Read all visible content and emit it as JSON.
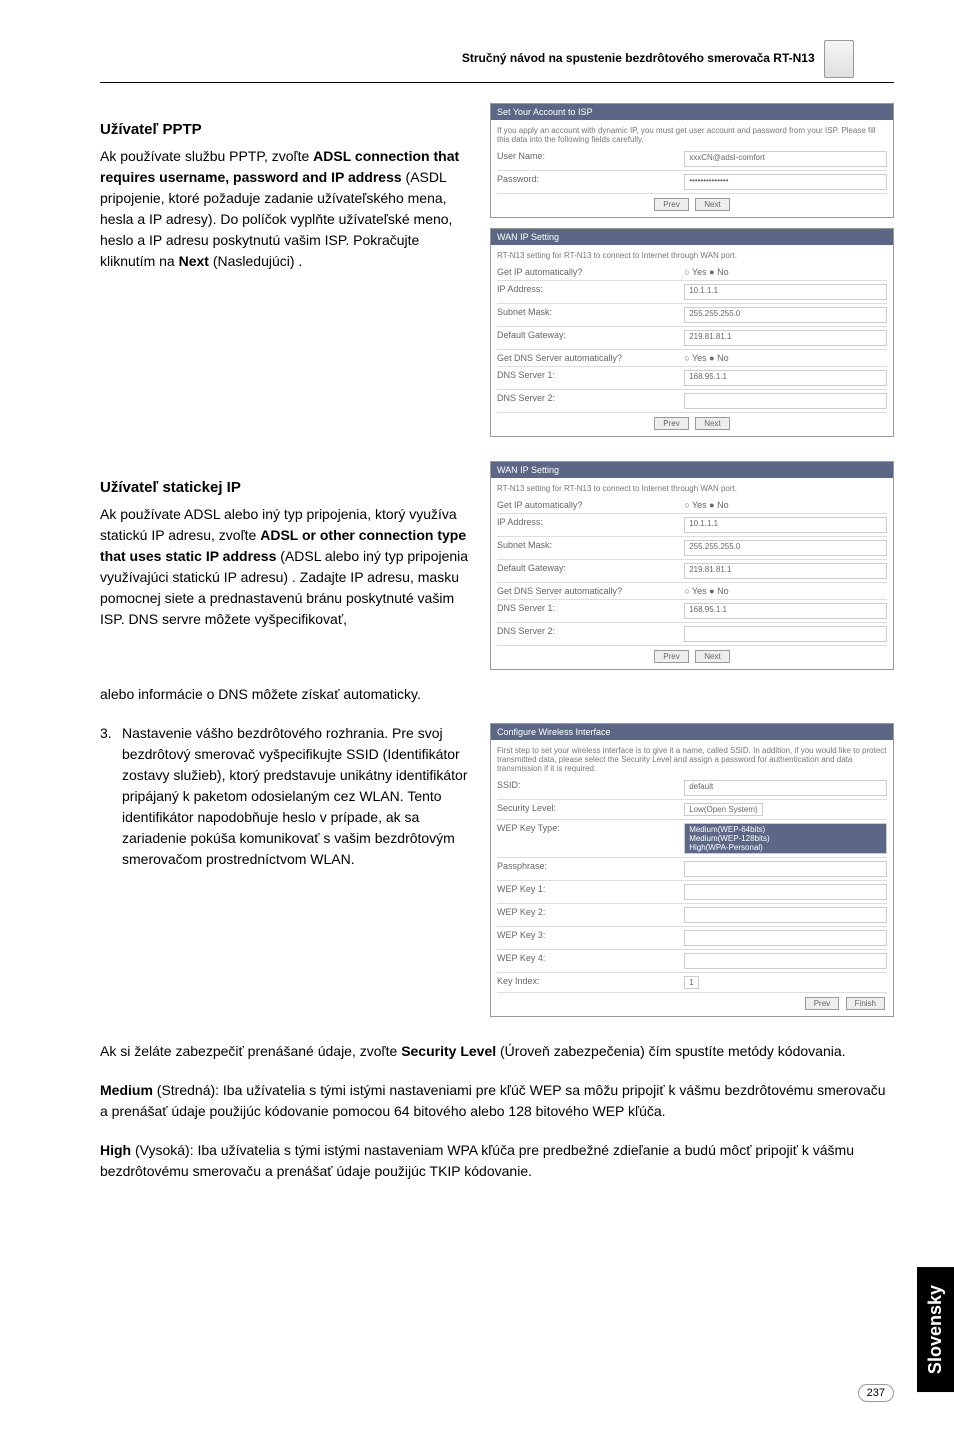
{
  "header": {
    "title": "Stručný návod na spustenie bezdrôtového smerovača RT-N13"
  },
  "pptp": {
    "title": "Užívateľ PPTP",
    "body": "Ak používate službu PPTP, zvoľte ADSL connection that requires username, password and IP address (ASDL pripojenie, ktoré požaduje zadanie užívateľského mena, hesla a IP adresy). Do políčok vyplňte užívateľské meno, heslo a IP adresu poskytnutú vašim ISP. Pokračujte kliknutím na Next (Nasledujúci) ."
  },
  "shot_account": {
    "header": "Set Your Account to ISP",
    "desc": "If you apply an account with dynamic IP, you must get user account and password from your ISP. Please fill this data into the following fields carefully.",
    "rows": [
      {
        "label": "User Name:",
        "value": "xxxCN@adsl-comfort"
      },
      {
        "label": "Password:",
        "value": "••••••••••••••"
      }
    ],
    "btn_prev": "Prev",
    "btn_next": "Next"
  },
  "shot_wanip1": {
    "header": "WAN IP Setting",
    "desc": "RT-N13 setting for RT-N13 to connect to Internet through WAN port.",
    "rows": [
      {
        "label": "Get IP automatically?",
        "value": "○ Yes ● No"
      },
      {
        "label": "IP Address:",
        "value": "10.1.1.1"
      },
      {
        "label": "Subnet Mask:",
        "value": "255.255.255.0"
      },
      {
        "label": "Default Gateway:",
        "value": "219.81.81.1"
      },
      {
        "label": "Get DNS Server automatically?",
        "value": "○ Yes ● No"
      },
      {
        "label": "DNS Server 1:",
        "value": "168.95.1.1"
      },
      {
        "label": "DNS Server 2:",
        "value": ""
      }
    ],
    "btn_prev": "Prev",
    "btn_next": "Next"
  },
  "staticip": {
    "title": "Užívateľ statickej IP",
    "body": "Ak používate ADSL alebo iný typ pripojenia, ktorý využíva statickú IP adresu, zvoľte ADSL or other connection type that uses static IP address (ADSL alebo iný typ pripojenia využívajúci statickú IP adresu) . Zadajte IP adresu, masku pomocnej siete a prednastavenú bránu poskytnuté vašim ISP. DNS servre môžete vyšpecifikovať, alebo informácie o DNS môžete získať automaticky."
  },
  "shot_wanip2": {
    "header": "WAN IP Setting",
    "desc": "RT-N13 setting for RT-N13 to connect to Internet through WAN port.",
    "rows": [
      {
        "label": "Get IP automatically?",
        "value": "○ Yes ● No"
      },
      {
        "label": "IP Address:",
        "value": "10.1.1.1"
      },
      {
        "label": "Subnet Mask:",
        "value": "255.255.255.0"
      },
      {
        "label": "Default Gateway:",
        "value": "219.81.81.1"
      },
      {
        "label": "Get DNS Server automatically?",
        "value": "○ Yes ● No"
      },
      {
        "label": "DNS Server 1:",
        "value": "168.95.1.1"
      },
      {
        "label": "DNS Server 2:",
        "value": ""
      }
    ],
    "btn_prev": "Prev",
    "btn_next": "Next"
  },
  "step3": {
    "num": "3.",
    "body": "Nastavenie vášho bezdrôtového rozhrania. Pre svoj bezdrôtový smerovač vyšpecifikujte SSID (Identifikátor zostavy služieb), ktorý predstavuje unikátny identifikátor pripájaný k paketom odosielaným cez WLAN. Tento identifikátor napodobňuje heslo v prípade, ak sa zariadenie pokúša komunikovať s vašim bezdrôtovým smerovačom prostredníctvom WLAN."
  },
  "shot_wireless": {
    "header": "Configure Wireless Interface",
    "desc": "First step to set your wireless interface is to give it a name, called SSID. In addition, if you would like to protect transmitted data, please select the Security Level and assign a password for authentication and data transmission if it is required.",
    "rows": [
      {
        "label": "SSID:",
        "value": "default"
      },
      {
        "label": "Security Level:",
        "value": "Low(Open System)"
      },
      {
        "label": "WEP Key Type:",
        "value": "Medium(WEP-64bits)\nMedium(WEP-128bits)\nHigh(WPA-Personal)"
      },
      {
        "label": "Passphrase:",
        "value": ""
      },
      {
        "label": "WEP Key 1:",
        "value": ""
      },
      {
        "label": "WEP Key 2:",
        "value": ""
      },
      {
        "label": "WEP Key 3:",
        "value": ""
      },
      {
        "label": "WEP Key 4:",
        "value": ""
      },
      {
        "label": "Key Index:",
        "value": "1"
      }
    ],
    "btn_prev": "Prev",
    "btn_finish": "Finish"
  },
  "tail": {
    "p1": "Ak si želáte zabezpečiť prenášané údaje, zvoľte Security Level (Úroveň zabezpečenia) čím spustíte metódy kódovania.",
    "p2": "Medium (Stredná): Iba užívatelia s tými istými nastaveniami pre kľúč WEP sa môžu pripojiť k vášmu bezdrôtovému smerovaču a prenášať údaje použijúc kódovanie pomocou 64 bitového alebo 128 bitového WEP kľúča.",
    "p3": "High (Vysoká): Iba užívatelia s tými istými nastaveniam WPA kľúča pre predbežné zdieľanie a budú môcť pripojiť k vášmu bezdrôtovému smerovaču a prenášať údaje použijúc TKIP kódovanie."
  },
  "side_tab": "Slovensky",
  "page_number": "237"
}
